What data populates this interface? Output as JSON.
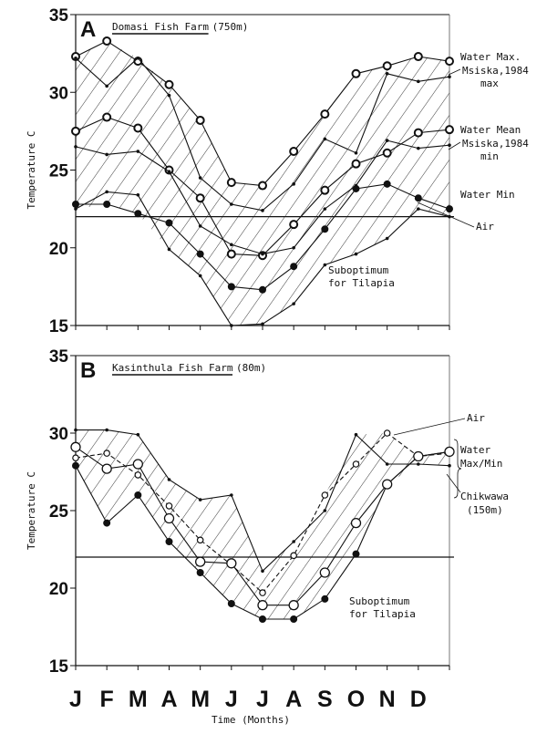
{
  "chart_data": [
    {
      "type": "line",
      "panel_letter": "A",
      "title": "Domasi Fish Farm",
      "title_suffix": "(750m)",
      "ylabel": "Temperature C",
      "ylim": [
        15,
        35
      ],
      "yticks": [
        "15",
        "20",
        "25",
        "30",
        "35"
      ],
      "threshold": 22,
      "threshold_label": [
        "Suboptimum",
        "for Tilapia"
      ],
      "x": [
        0,
        1,
        2,
        3,
        4,
        5,
        6,
        7,
        8,
        9,
        10,
        11,
        12
      ],
      "series": [
        {
          "name": "Water Max.",
          "marker": "ring",
          "values": [
            32.3,
            33.3,
            32.0,
            30.5,
            28.2,
            24.2,
            24.0,
            26.2,
            28.6,
            31.2,
            31.7,
            32.3,
            32.0
          ]
        },
        {
          "name": "Msiska,1984 max",
          "marker": "dot",
          "values": [
            32.2,
            30.4,
            32.2,
            29.8,
            24.5,
            22.8,
            22.4,
            24.1,
            27.0,
            26.1,
            31.2,
            30.7,
            31.0
          ]
        },
        {
          "name": "Water Mean",
          "marker": "ring",
          "values": [
            27.5,
            28.4,
            27.7,
            25.0,
            23.2,
            19.6,
            19.5,
            21.5,
            23.7,
            25.4,
            26.1,
            27.4,
            27.6
          ]
        },
        {
          "name": "Msiska,1984 min",
          "marker": "dot",
          "values": [
            26.5,
            26.0,
            26.2,
            24.9,
            21.4,
            20.2,
            19.6,
            20.0,
            22.5,
            24.0,
            26.9,
            26.4,
            26.6
          ]
        },
        {
          "name": "Water Min",
          "marker": "filled",
          "values": [
            22.8,
            22.8,
            22.2,
            21.6,
            19.6,
            17.5,
            17.3,
            18.8,
            21.2,
            23.8,
            24.1,
            23.2,
            22.5
          ]
        },
        {
          "name": "Air",
          "marker": "dot",
          "values": [
            22.5,
            23.6,
            23.4,
            19.9,
            18.2,
            15.0,
            15.1,
            16.4,
            18.9,
            19.6,
            20.6,
            22.5,
            22.0
          ]
        }
      ],
      "legend": [
        "Water Max.",
        "Msiska,1984",
        "max",
        "Water Mean",
        "Msiska,1984",
        "min",
        "Water Min",
        "Air"
      ]
    },
    {
      "type": "line",
      "panel_letter": "B",
      "title": "Kasinthula Fish Farm",
      "title_suffix": "(80m)",
      "ylabel": "Temperature C",
      "ylim": [
        15,
        35
      ],
      "yticks": [
        "15",
        "20",
        "25",
        "30",
        "35"
      ],
      "threshold": 22,
      "threshold_label": [
        "Suboptimum",
        "for Tilapia"
      ],
      "x": [
        0,
        1,
        2,
        3,
        4,
        5,
        6,
        7,
        8,
        9,
        10,
        11,
        12
      ],
      "series": [
        {
          "name": "Air",
          "marker": "open",
          "dashed": true,
          "values": [
            28.4,
            28.7,
            27.3,
            25.3,
            23.1,
            21.5,
            19.7,
            22.1,
            26.0,
            28.0,
            30.0,
            28.5,
            28.7
          ]
        },
        {
          "name": "Water Max",
          "marker": "dot",
          "values": [
            30.2,
            30.2,
            29.9,
            27.0,
            25.7,
            26.0,
            21.1,
            23.0,
            25.0,
            29.9,
            28.0,
            28.0,
            27.9
          ]
        },
        {
          "name": "Water Min",
          "marker": "filled",
          "values": [
            27.9,
            24.2,
            26.0,
            23.0,
            21.0,
            19.0,
            18.0,
            18.0,
            19.3,
            22.2,
            26.7,
            28.5,
            28.8
          ]
        },
        {
          "name": "Chikwawa (150m)",
          "marker": "bigopen",
          "values": [
            29.1,
            27.7,
            28.0,
            24.5,
            21.7,
            21.6,
            18.9,
            18.9,
            21.0,
            24.2,
            26.7,
            28.5,
            28.8
          ]
        }
      ],
      "legend": [
        "Air",
        "Water",
        "Max/Min",
        "Chikwawa",
        "(150m)"
      ]
    }
  ],
  "xaxis": {
    "categories": [
      "J",
      "F",
      "M",
      "A",
      "M",
      "J",
      "J",
      "A",
      "S",
      "O",
      "N",
      "D"
    ],
    "label": "Time (Months)"
  }
}
